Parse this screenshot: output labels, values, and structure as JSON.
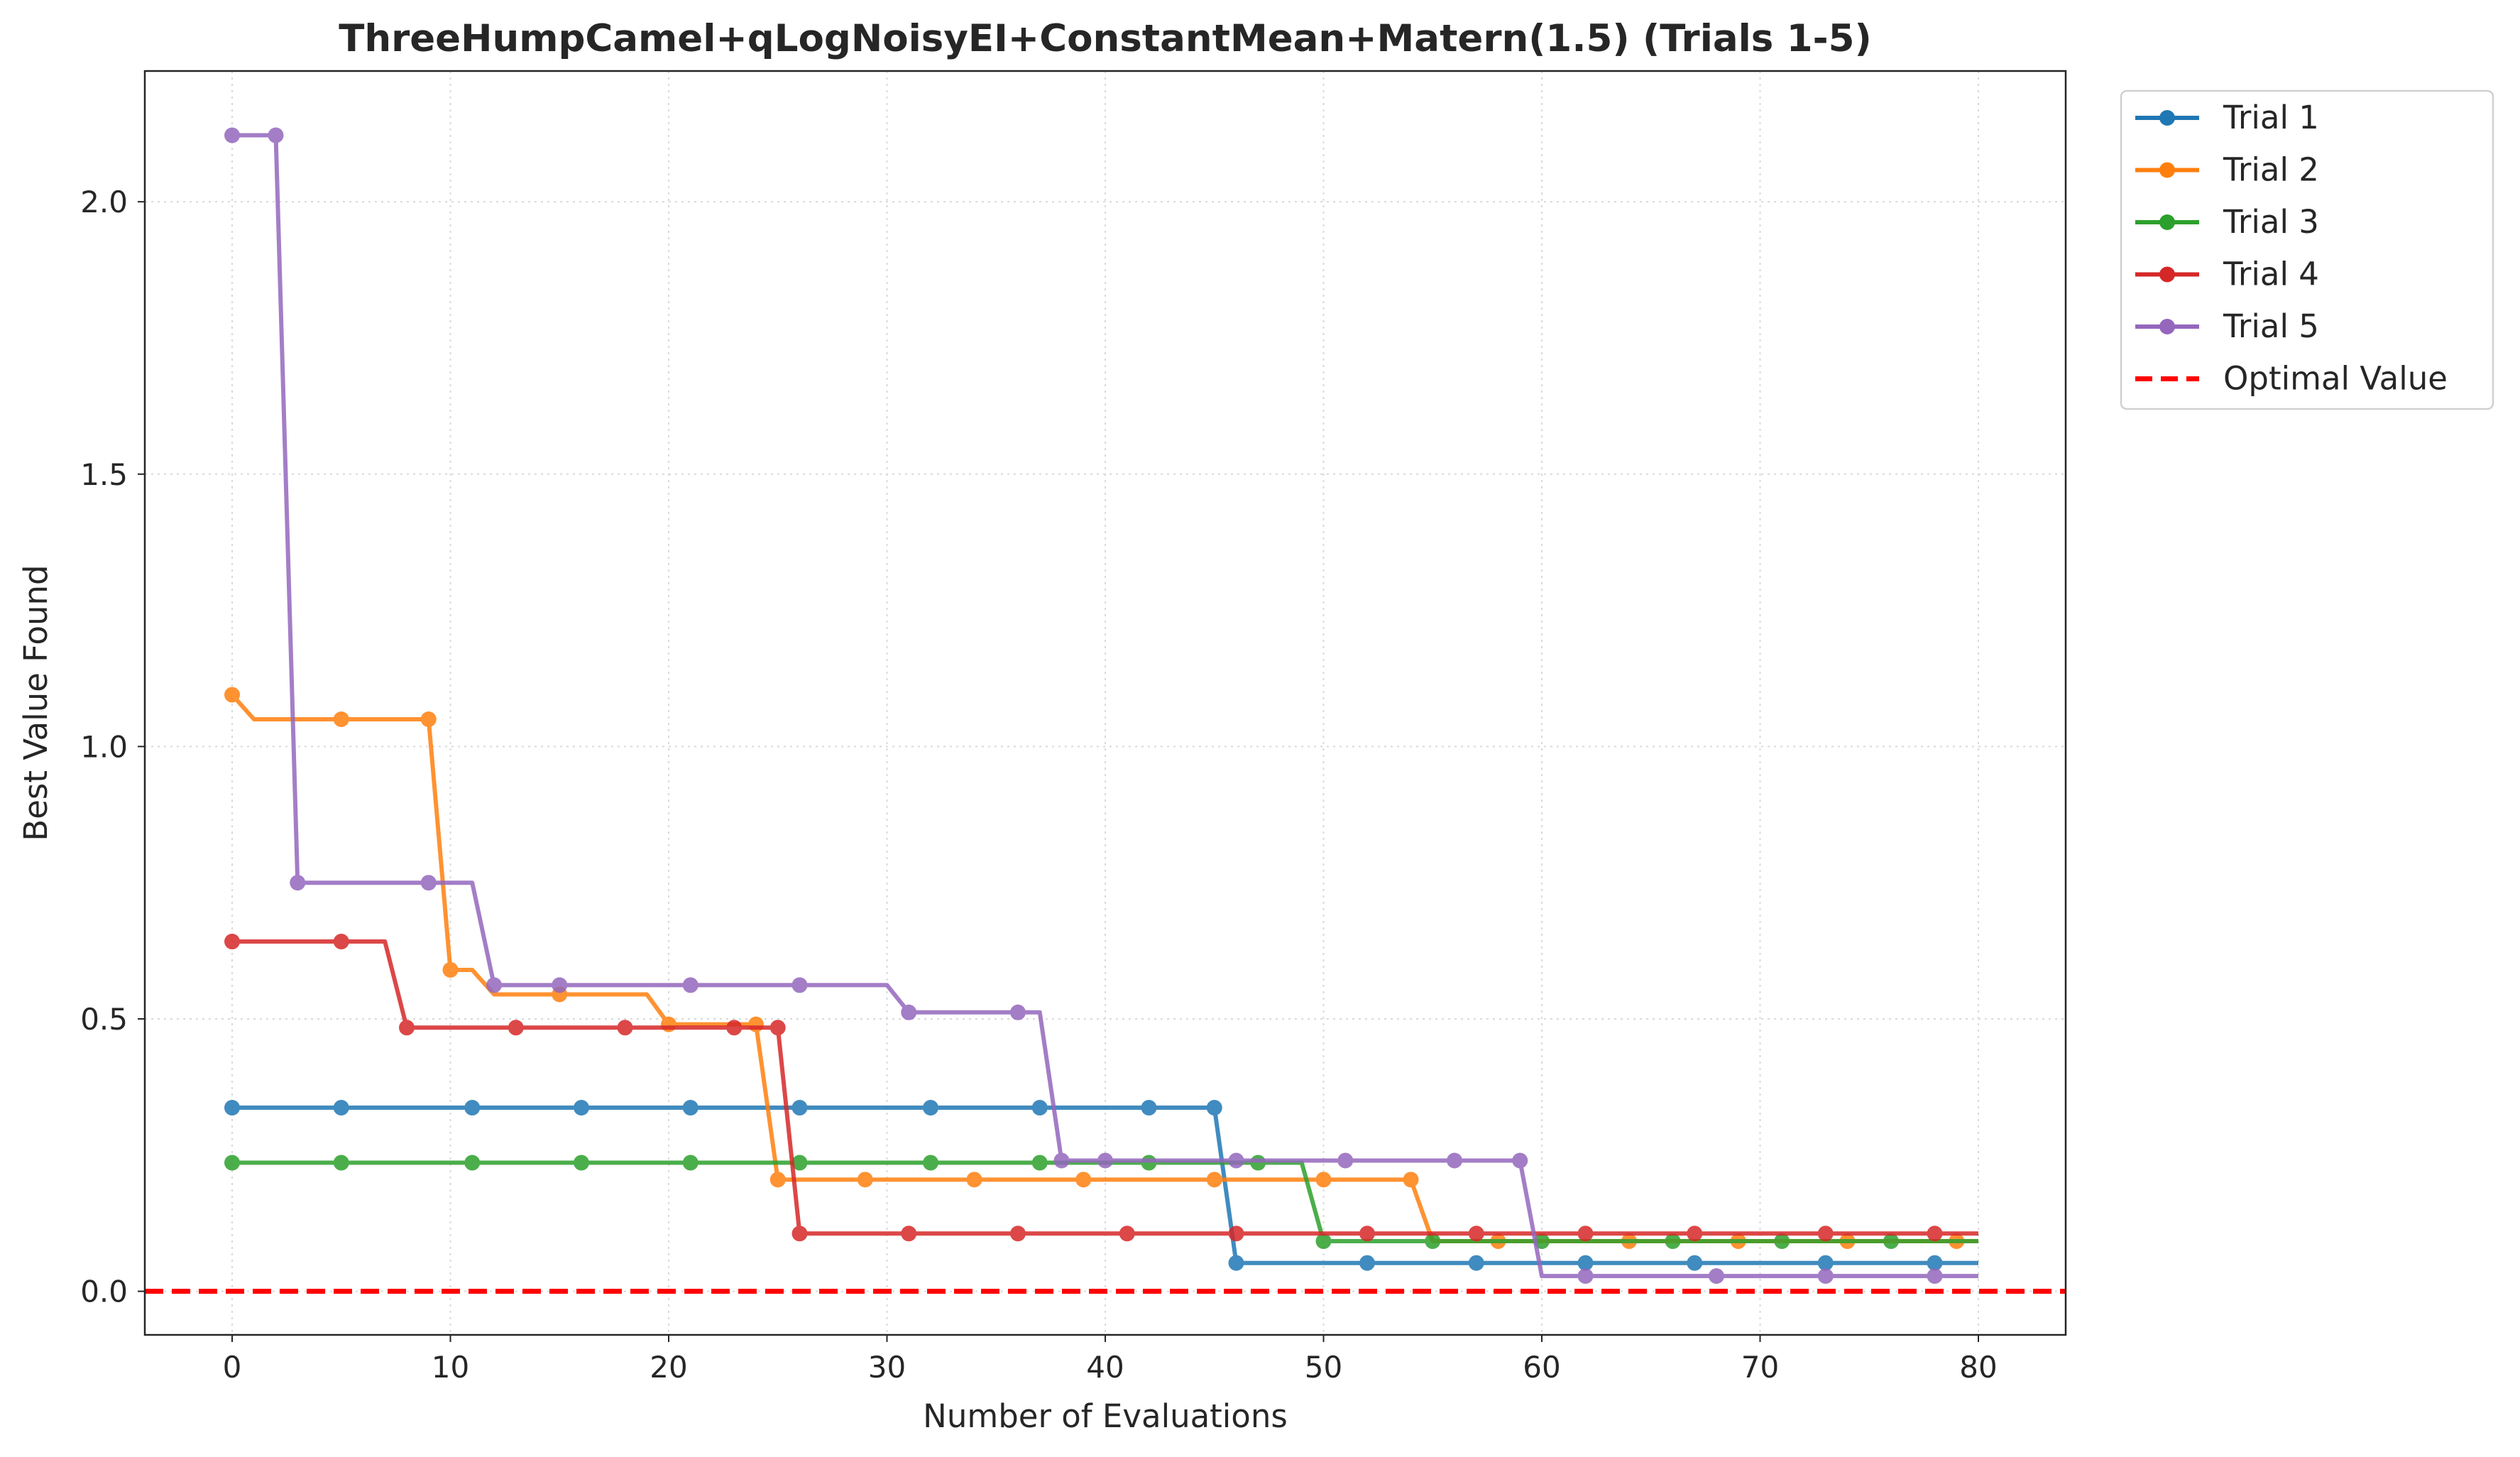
{
  "chart_data": {
    "type": "line",
    "title": "ThreeHumpCamel+qLogNoisyEI+ConstantMean+Matern(1.5) (Trials 1-5)",
    "xlabel": "Number of Evaluations",
    "ylabel": "Best Value Found",
    "xlim": [
      -4,
      84
    ],
    "ylim": [
      -0.08,
      2.24
    ],
    "xticks": [
      0,
      10,
      20,
      30,
      40,
      50,
      60,
      70,
      80
    ],
    "yticks": [
      0.0,
      0.5,
      1.0,
      1.5,
      2.0
    ],
    "xtick_labels": [
      "0",
      "10",
      "20",
      "30",
      "40",
      "50",
      "60",
      "70",
      "80"
    ],
    "ytick_labels": [
      "0.0",
      "0.5",
      "1.0",
      "1.5",
      "2.0"
    ],
    "grid": true,
    "legend_position": "outside-top-right",
    "series": [
      {
        "name": "Trial 1",
        "color": "#1f77b4",
        "x": [
          0,
          45,
          46,
          80
        ],
        "y": [
          0.337,
          0.337,
          0.052,
          0.052
        ],
        "markers_x": [
          0,
          5,
          11,
          16,
          21,
          26,
          32,
          37,
          42,
          45,
          46,
          52,
          57,
          62,
          67,
          73,
          78
        ],
        "markers_y": [
          0.337,
          0.337,
          0.337,
          0.337,
          0.337,
          0.337,
          0.337,
          0.337,
          0.337,
          0.337,
          0.052,
          0.052,
          0.052,
          0.052,
          0.052,
          0.052,
          0.052
        ]
      },
      {
        "name": "Trial 2",
        "color": "#ff7f0e",
        "x": [
          0,
          1,
          9,
          10,
          11,
          12,
          19,
          20,
          24,
          25,
          54,
          55,
          80
        ],
        "y": [
          1.095,
          1.05,
          1.05,
          0.59,
          0.59,
          0.545,
          0.545,
          0.49,
          0.49,
          0.205,
          0.205,
          0.092,
          0.092
        ],
        "markers_x": [
          0,
          5,
          9,
          10,
          15,
          20,
          24,
          25,
          29,
          34,
          39,
          45,
          50,
          54,
          58,
          64,
          69,
          74,
          79
        ],
        "markers_y": [
          1.095,
          1.05,
          1.05,
          0.59,
          0.545,
          0.49,
          0.49,
          0.205,
          0.205,
          0.205,
          0.205,
          0.205,
          0.205,
          0.205,
          0.092,
          0.092,
          0.092,
          0.092,
          0.092
        ]
      },
      {
        "name": "Trial 3",
        "color": "#2ca02c",
        "x": [
          0,
          49,
          50,
          80
        ],
        "y": [
          0.236,
          0.236,
          0.092,
          0.092
        ],
        "markers_x": [
          0,
          5,
          11,
          16,
          21,
          26,
          32,
          37,
          42,
          47,
          50,
          55,
          60,
          66,
          71,
          76
        ],
        "markers_y": [
          0.236,
          0.236,
          0.236,
          0.236,
          0.236,
          0.236,
          0.236,
          0.236,
          0.236,
          0.236,
          0.092,
          0.092,
          0.092,
          0.092,
          0.092,
          0.092
        ]
      },
      {
        "name": "Trial 4",
        "color": "#d62728",
        "x": [
          0,
          7,
          8,
          25,
          26,
          80
        ],
        "y": [
          0.642,
          0.642,
          0.484,
          0.484,
          0.106,
          0.106
        ],
        "markers_x": [
          0,
          5,
          8,
          13,
          18,
          23,
          25,
          26,
          31,
          36,
          41,
          46,
          52,
          57,
          62,
          67,
          73,
          78
        ],
        "markers_y": [
          0.642,
          0.642,
          0.484,
          0.484,
          0.484,
          0.484,
          0.484,
          0.106,
          0.106,
          0.106,
          0.106,
          0.106,
          0.106,
          0.106,
          0.106,
          0.106,
          0.106,
          0.106
        ]
      },
      {
        "name": "Trial 5",
        "color": "#9467bd",
        "x": [
          0,
          2,
          3,
          11,
          12,
          30,
          31,
          37,
          38,
          59,
          60,
          80
        ],
        "y": [
          2.122,
          2.122,
          0.75,
          0.75,
          0.562,
          0.562,
          0.512,
          0.512,
          0.24,
          0.24,
          0.028,
          0.028
        ],
        "markers_x": [
          0,
          2,
          3,
          9,
          12,
          15,
          21,
          26,
          31,
          36,
          38,
          40,
          46,
          51,
          56,
          59,
          62,
          68,
          73,
          78
        ],
        "markers_y": [
          2.122,
          2.122,
          0.75,
          0.75,
          0.562,
          0.562,
          0.562,
          0.562,
          0.512,
          0.512,
          0.24,
          0.24,
          0.24,
          0.24,
          0.24,
          0.24,
          0.028,
          0.028,
          0.028,
          0.028
        ]
      }
    ],
    "reference_line": {
      "name": "Optimal Value",
      "y": 0.0,
      "color": "#ff0000",
      "style": "dashed"
    }
  }
}
